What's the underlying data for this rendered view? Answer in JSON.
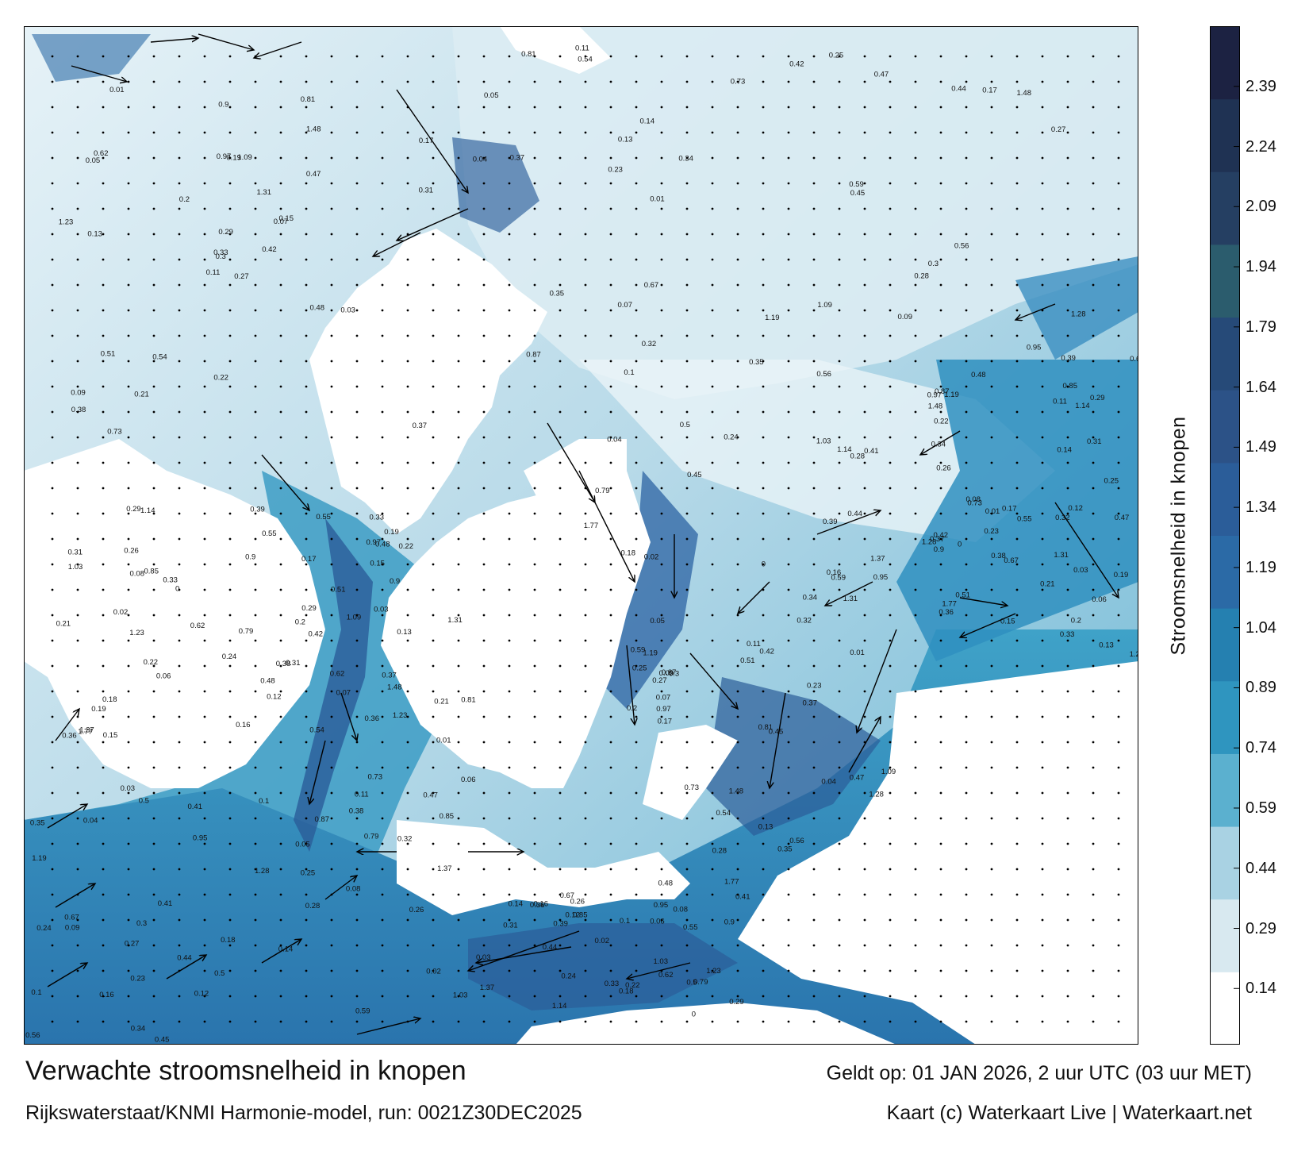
{
  "title": "Verwachte stroomsnelheid in knopen",
  "model_run": "Rijkswaterstaat/KNMI Harmonie-model, run: 0021Z30DEC2025",
  "valid_time": "Geldt op: 01 JAN 2026, 2 uur UTC (03 uur MET)",
  "credit": "Kaart (c) Waterkaart Live | Waterkaart.net",
  "colorbar": {
    "title": "Stroomsnelheid in knopen",
    "ticks": [
      "2.39",
      "2.24",
      "2.09",
      "1.94",
      "1.79",
      "1.64",
      "1.49",
      "1.34",
      "1.19",
      "1.04",
      "0.89",
      "0.74",
      "0.59",
      "0.44",
      "0.29",
      "0.14"
    ],
    "min": 0,
    "max": 2.54,
    "colors": [
      "#ffffff",
      "#d8e9f0",
      "#a9d2e3",
      "#5bb0cf",
      "#2f95bf",
      "#2580b0",
      "#2b6aa6",
      "#2b5d99",
      "#2c5287",
      "#264a78",
      "#2b5c6d",
      "#253f62",
      "#1f3253",
      "#1c2242"
    ]
  },
  "map": {
    "background_color": "#ffffff",
    "sea_low_color": "#c8e2ee",
    "sea_mid_color": "#2f95bf",
    "sea_high_color": "#2b5d99",
    "labels": [
      {
        "v": "0.27"
      },
      {
        "v": "0.33"
      },
      {
        "v": "0.34"
      },
      {
        "v": "0.38"
      },
      {
        "v": "0.26"
      },
      {
        "v": "0.37"
      },
      {
        "v": "0.08"
      },
      {
        "v": "0.05"
      },
      {
        "v": "0.22"
      },
      {
        "v": "0.23"
      },
      {
        "v": "0.21"
      },
      {
        "v": "0.12"
      },
      {
        "v": "0.13"
      },
      {
        "v": "0.24"
      },
      {
        "v": "0.3"
      },
      {
        "v": "0.29"
      },
      {
        "v": "0.28"
      },
      {
        "v": "0.19"
      },
      {
        "v": "0.16"
      },
      {
        "v": "0.17"
      },
      {
        "v": "0.18"
      },
      {
        "v": "0.09"
      },
      {
        "v": "0.36"
      },
      {
        "v": "0.32"
      },
      {
        "v": "0.15"
      },
      {
        "v": "0.14"
      },
      {
        "v": "0.11"
      },
      {
        "v": "0.1"
      },
      {
        "v": "0.07"
      },
      {
        "v": "0.06"
      },
      {
        "v": "0.04"
      },
      {
        "v": "0.03"
      },
      {
        "v": "0.44"
      },
      {
        "v": "0.47"
      },
      {
        "v": "0.5"
      },
      {
        "v": "0.54"
      },
      {
        "v": "0.55"
      },
      {
        "v": "0.59"
      },
      {
        "v": "0.62"
      },
      {
        "v": "0.67"
      },
      {
        "v": "0.73"
      },
      {
        "v": "0.79"
      },
      {
        "v": "0.81"
      },
      {
        "v": "0.85"
      },
      {
        "v": "0.87"
      },
      {
        "v": "0.9"
      },
      {
        "v": "0.95"
      },
      {
        "v": "0.97"
      },
      {
        "v": "1.03"
      },
      {
        "v": "1.09"
      },
      {
        "v": "1.14"
      },
      {
        "v": "1.19"
      },
      {
        "v": "1.23"
      },
      {
        "v": "1.28"
      },
      {
        "v": "1.31"
      },
      {
        "v": "1.37"
      },
      {
        "v": "1.48"
      },
      {
        "v": "1.77"
      },
      {
        "v": "0.45"
      },
      {
        "v": "0.48"
      },
      {
        "v": "0.56"
      },
      {
        "v": "0.51"
      },
      {
        "v": "0.41"
      },
      {
        "v": "0.42"
      },
      {
        "v": "0.39"
      },
      {
        "v": "0.35"
      },
      {
        "v": "0.31"
      },
      {
        "v": "0.25"
      },
      {
        "v": "0.2"
      },
      {
        "v": "0.02"
      },
      {
        "v": "0.01"
      },
      {
        "v": "0"
      }
    ]
  }
}
